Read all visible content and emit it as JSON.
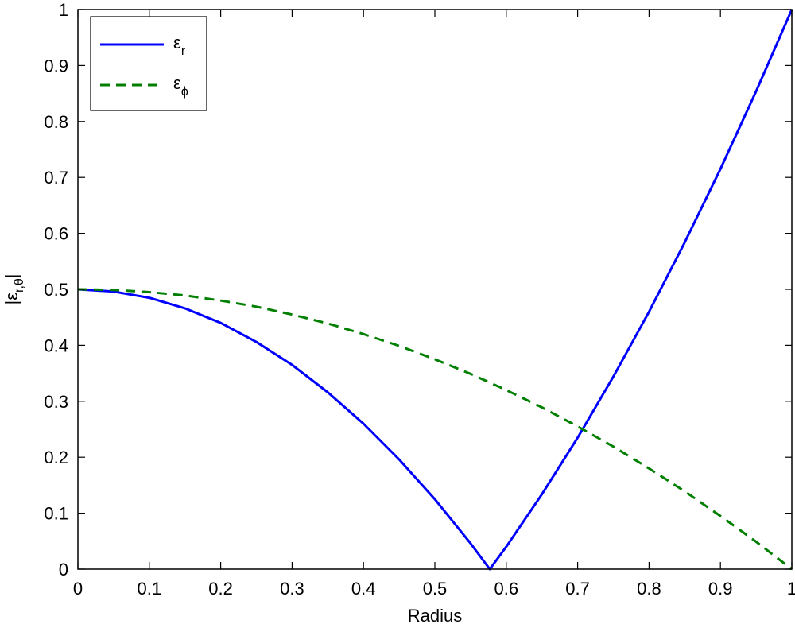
{
  "chart_data": {
    "type": "line",
    "xlabel": "Radius",
    "ylabel": "|εr,θ|",
    "xlim": [
      0,
      1
    ],
    "ylim": [
      0,
      1
    ],
    "x_ticks": [
      "0",
      "0.1",
      "0.2",
      "0.3",
      "0.4",
      "0.5",
      "0.6",
      "0.7",
      "0.8",
      "0.9",
      "1"
    ],
    "y_ticks": [
      "0",
      "0.1",
      "0.2",
      "0.3",
      "0.4",
      "0.5",
      "0.6",
      "0.7",
      "0.8",
      "0.9",
      "1"
    ],
    "grid": false,
    "legend_position": "top-left",
    "series": [
      {
        "name": "εr",
        "color": "#0000ff",
        "line_style": "solid",
        "x": [
          0,
          0.05,
          0.1,
          0.15,
          0.2,
          0.25,
          0.3,
          0.35,
          0.4,
          0.45,
          0.5,
          0.55,
          0.577,
          0.6,
          0.65,
          0.7,
          0.75,
          0.8,
          0.85,
          0.9,
          0.95,
          1.0
        ],
        "y": [
          0.5,
          0.496,
          0.485,
          0.466,
          0.44,
          0.406,
          0.365,
          0.316,
          0.26,
          0.196,
          0.125,
          0.046,
          0.0,
          0.04,
          0.134,
          0.235,
          0.344,
          0.46,
          0.584,
          0.715,
          0.854,
          1.0
        ]
      },
      {
        "name": "εϕ",
        "color": "#007f00",
        "line_style": "dashed",
        "x": [
          0,
          0.05,
          0.1,
          0.15,
          0.2,
          0.25,
          0.3,
          0.35,
          0.4,
          0.45,
          0.5,
          0.55,
          0.6,
          0.65,
          0.7,
          0.75,
          0.8,
          0.85,
          0.9,
          0.95,
          1.0
        ],
        "y": [
          0.5,
          0.499,
          0.495,
          0.489,
          0.48,
          0.469,
          0.455,
          0.439,
          0.42,
          0.399,
          0.375,
          0.349,
          0.32,
          0.289,
          0.255,
          0.219,
          0.18,
          0.139,
          0.095,
          0.049,
          0.0
        ]
      }
    ]
  }
}
